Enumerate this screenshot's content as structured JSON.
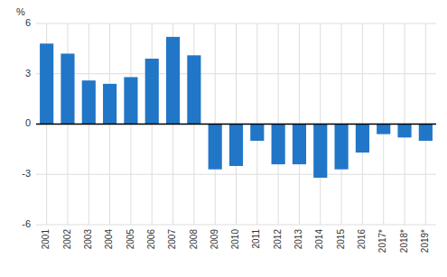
{
  "chart_data": {
    "type": "bar",
    "ylabel": "%",
    "categories": [
      "2001",
      "2002",
      "2003",
      "2004",
      "2005",
      "2006",
      "2007",
      "2008",
      "2009",
      "2010",
      "2011",
      "2012",
      "2013",
      "2014",
      "2015",
      "2016",
      "2017*",
      "2018*",
      "2019*"
    ],
    "values": [
      4.8,
      4.2,
      2.6,
      2.4,
      2.8,
      3.9,
      5.2,
      4.1,
      -2.7,
      -2.5,
      -1.0,
      -2.4,
      -2.4,
      -3.2,
      -2.7,
      -1.7,
      -0.6,
      -0.8,
      -1.0
    ],
    "color": "#2176c7",
    "ylim": [
      -6,
      6
    ],
    "yticks": [
      -6,
      -3,
      0,
      3,
      6
    ],
    "grid": true
  }
}
